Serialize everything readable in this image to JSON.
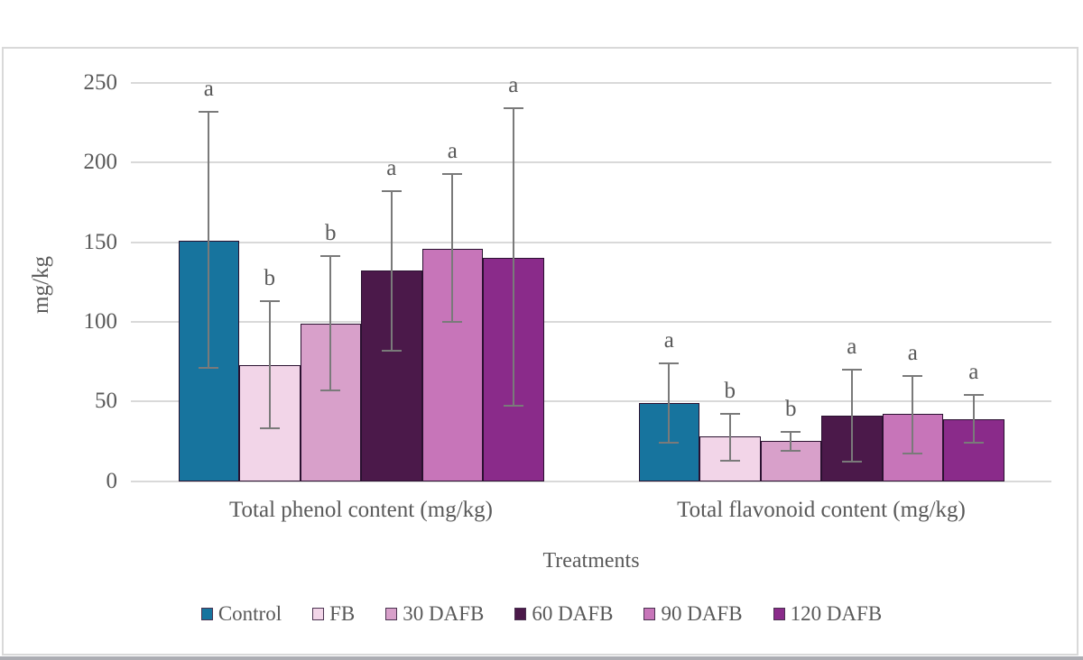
{
  "figure": {
    "y_axis_title": "mg/kg",
    "x_axis_title": "Treatments"
  },
  "colors": {
    "background": "#FFFFFF",
    "chart_border": "#D9D9D9",
    "gridline": "#D9D9D9",
    "error_bar": "#7A7A7A",
    "text": "#595959",
    "bar_outline": "#2A1130",
    "bottom_strip": "#ACADB3"
  },
  "chart_data": {
    "type": "bar",
    "title": "",
    "xlabel": "Treatments",
    "ylabel": "mg/kg",
    "ylim": [
      0,
      250
    ],
    "yticks": [
      0,
      50,
      100,
      150,
      200,
      250
    ],
    "grid": true,
    "legend_position": "bottom",
    "error_bars": true,
    "categories": [
      "Total phenol content (mg/kg)",
      "Total flavonoid content (mg/kg)"
    ],
    "series": [
      {
        "name": "Control",
        "color": "#17749E",
        "points": [
          {
            "value": 151,
            "err_low": 71,
            "err_high": 232,
            "letter": "a"
          },
          {
            "value": 49,
            "err_low": 24,
            "err_high": 74,
            "letter": "a"
          }
        ]
      },
      {
        "name": "FB",
        "color": "#F2D5E8",
        "points": [
          {
            "value": 73,
            "err_low": 33,
            "err_high": 113,
            "letter": "b"
          },
          {
            "value": 28,
            "err_low": 13,
            "err_high": 42,
            "letter": "b"
          }
        ]
      },
      {
        "name": "30 DAFB",
        "color": "#D8A0CA",
        "points": [
          {
            "value": 99,
            "err_low": 57,
            "err_high": 141,
            "letter": "b"
          },
          {
            "value": 25,
            "err_low": 19,
            "err_high": 31,
            "letter": "b"
          }
        ]
      },
      {
        "name": "60 DAFB",
        "color": "#4B194A",
        "points": [
          {
            "value": 132,
            "err_low": 82,
            "err_high": 182,
            "letter": "a"
          },
          {
            "value": 41,
            "err_low": 12,
            "err_high": 70,
            "letter": "a"
          }
        ]
      },
      {
        "name": "90 DAFB",
        "color": "#C775B9",
        "points": [
          {
            "value": 146,
            "err_low": 100,
            "err_high": 193,
            "letter": "a"
          },
          {
            "value": 42,
            "err_low": 17,
            "err_high": 66,
            "letter": "a"
          }
        ]
      },
      {
        "name": "120 DAFB",
        "color": "#8A2B8A",
        "points": [
          {
            "value": 140,
            "err_low": 47,
            "err_high": 234,
            "letter": "a"
          },
          {
            "value": 39,
            "err_low": 24,
            "err_high": 54,
            "letter": "a"
          }
        ]
      }
    ]
  }
}
